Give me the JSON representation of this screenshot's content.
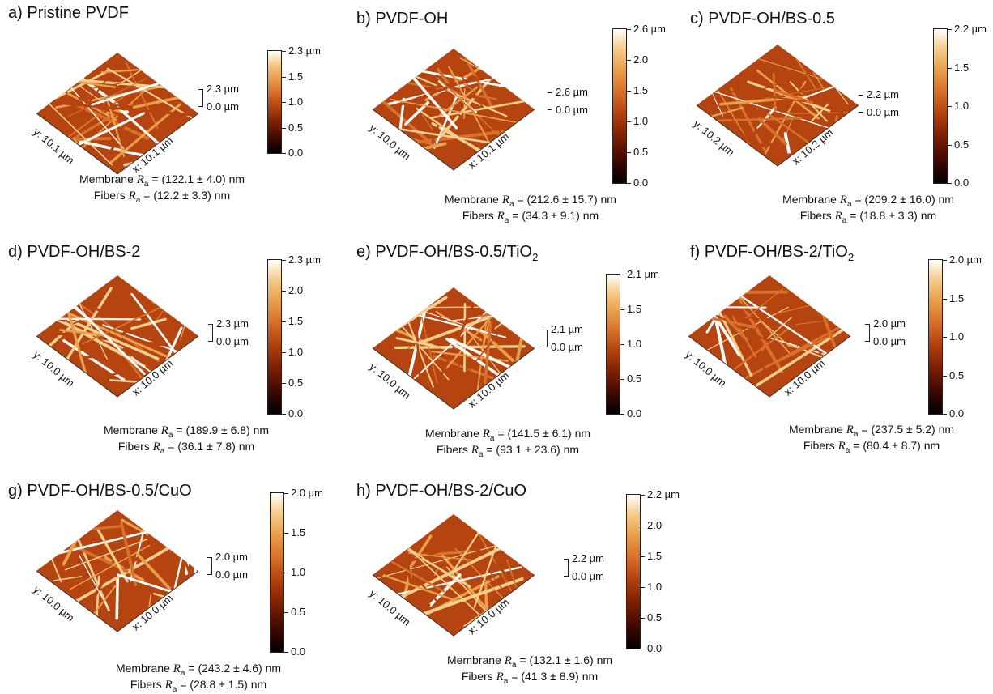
{
  "colors": {
    "colormap": [
      "#000000",
      "#3c0800",
      "#7b1f02",
      "#b54410",
      "#d8722a",
      "#e9a04b",
      "#f5cf8f",
      "#ffffff"
    ],
    "text": "#111111"
  },
  "labels": {
    "membrane": "Membrane",
    "fibers": "Fibers",
    "ra_symbol": "R",
    "ra_subscript": "a"
  },
  "panels": [
    {
      "letter": "a)",
      "name": "Pristine PVDF",
      "sub": "",
      "zmax": "2.3 µm",
      "zmin": "0.0 µm",
      "xlen": "x: 10.1 µm",
      "ylen": "y: 10.1 µm",
      "bar_ticks": [
        "2.3 µm",
        "1.5",
        "1.0",
        "0.5",
        "0.0"
      ],
      "membrane_ra": "= (122.1 ± 4.0) nm",
      "fibers_ra": "= (12.2 ± 3.3) nm"
    },
    {
      "letter": "b)",
      "name": "PVDF-OH",
      "sub": "",
      "zmax": "2.6 µm",
      "zmin": "0.0 µm",
      "xlen": "x: 10.1 µm",
      "ylen": "y: 10.0 µm",
      "bar_ticks": [
        "2.6 µm",
        "2.0",
        "1.5",
        "1.0",
        "0.5",
        "0.0"
      ],
      "membrane_ra": "= (212.6 ± 15.7) nm",
      "fibers_ra": "= (34.3 ± 9.1) nm"
    },
    {
      "letter": "c)",
      "name": "PVDF-OH/BS-0.5",
      "sub": "",
      "zmax": "2.2 µm",
      "zmin": "0.0 µm",
      "xlen": "x: 10.2 µm",
      "ylen": "y: 10.2 µm",
      "bar_ticks": [
        "2.2 µm",
        "1.5",
        "1.0",
        "0.5",
        "0.0"
      ],
      "membrane_ra": "= (209.2 ± 16.0) nm",
      "fibers_ra": "= (18.8 ± 3.3) nm"
    },
    {
      "letter": "d)",
      "name": "PVDF-OH/BS-2",
      "sub": "",
      "zmax": "2.3 µm",
      "zmin": "0.0 µm",
      "xlen": "x: 10.0 µm",
      "ylen": "y: 10.0 µm",
      "bar_ticks": [
        "2.3 µm",
        "2.0",
        "1.5",
        "1.0",
        "0.5",
        "0.0"
      ],
      "membrane_ra": "= (189.9 ± 6.8) nm",
      "fibers_ra": "= (36.1 ± 7.8) nm"
    },
    {
      "letter": "e)",
      "name": "PVDF-OH/BS-0.5/TiO",
      "sub": "2",
      "zmax": "2.1 µm",
      "zmin": "0.0 µm",
      "xlen": "x: 10.0 µm",
      "ylen": "y: 10.0 µm",
      "bar_ticks": [
        "2.1 µm",
        "1.5",
        "1.0",
        "0.5",
        "0.0"
      ],
      "membrane_ra": "= (141.5 ± 6.1) nm",
      "fibers_ra": "= (93.1 ± 23.6) nm"
    },
    {
      "letter": "f)",
      "name": "PVDF-OH/BS-2/TiO",
      "sub": "2",
      "zmax": "2.0 µm",
      "zmin": "0.0 µm",
      "xlen": "x: 10.0 µm",
      "ylen": "y: 10.0 µm",
      "bar_ticks": [
        "2.0 µm",
        "1.5",
        "1.0",
        "0.5",
        "0.0"
      ],
      "membrane_ra": "= (237.5 ± 5.2) nm",
      "fibers_ra": "= (80.4 ± 8.7) nm"
    },
    {
      "letter": "g)",
      "name": "PVDF-OH/BS-0.5/CuO",
      "sub": "",
      "zmax": "2.0 µm",
      "zmin": "0.0 µm",
      "xlen": "x: 10.0 µm",
      "ylen": "y: 10.0 µm",
      "bar_ticks": [
        "2.0 µm",
        "1.5",
        "1.0",
        "0.5",
        "0.0"
      ],
      "membrane_ra": "= (243.2 ± 4.6) nm",
      "fibers_ra": "= (28.8 ± 1.5) nm"
    },
    {
      "letter": "h)",
      "name": "PVDF-OH/BS-2/CuO",
      "sub": "",
      "zmax": "2.2 µm",
      "zmin": "0.0 µm",
      "xlen": "x: 10.0 µm",
      "ylen": "y: 10.0 µm",
      "bar_ticks": [
        "2.2 µm",
        "2.0",
        "1.5",
        "1.0",
        "0.5",
        "0.0"
      ],
      "membrane_ra": "= (132.1 ± 1.6) nm",
      "fibers_ra": "= (41.3 ± 8.9) nm"
    }
  ]
}
